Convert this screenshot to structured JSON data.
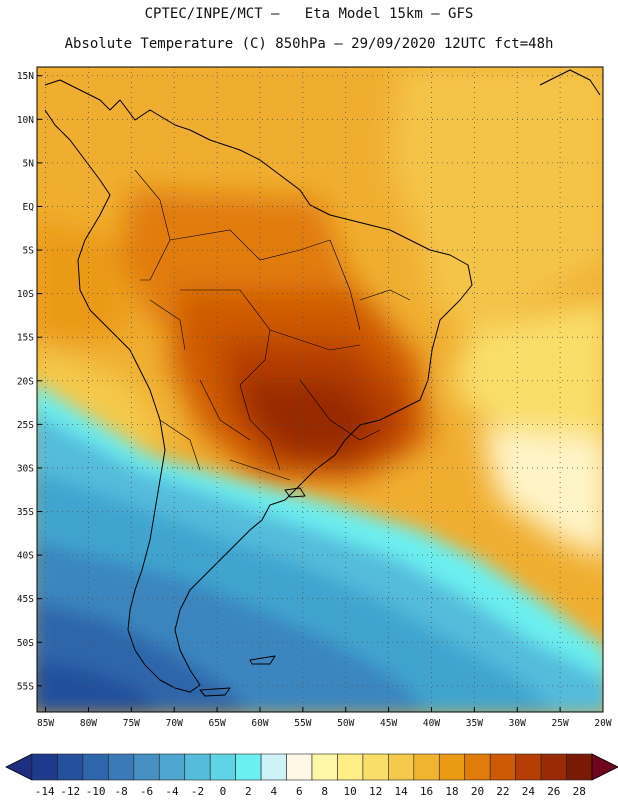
{
  "header": {
    "line1": "CPTEC/INPE/MCT –   Eta Model 15km – GFS",
    "line2": "Absolute Temperature (C) 850hPa – 29/09/2020 12UTC fct=48h"
  },
  "map": {
    "variable": "Absolute Temperature (C) 850hPa",
    "lat_labels": [
      "15N",
      "10N",
      "5N",
      "EQ",
      "5S",
      "10S",
      "15S",
      "20S",
      "25S",
      "30S",
      "35S",
      "40S",
      "45S",
      "50S",
      "55S"
    ],
    "lat_values": [
      15,
      10,
      5,
      0,
      -5,
      -10,
      -15,
      -20,
      -25,
      -30,
      -35,
      -40,
      -45,
      -50,
      -55
    ],
    "lon_labels": [
      "85W",
      "80W",
      "75W",
      "70W",
      "65W",
      "60W",
      "55W",
      "50W",
      "45W",
      "40W",
      "35W",
      "30W",
      "25W",
      "20W"
    ],
    "lon_values": [
      -85,
      -80,
      -75,
      -70,
      -65,
      -60,
      -55,
      -50,
      -45,
      -40,
      -35,
      -30,
      -25,
      -20
    ],
    "extent": {
      "lon_min": -86,
      "lon_max": -20,
      "lat_min": -58,
      "lat_max": 16
    }
  },
  "colorbar": {
    "labels": [
      "-14",
      "-12",
      "-10",
      "-8",
      "-6",
      "-4",
      "-2",
      "0",
      "2",
      "4",
      "6",
      "8",
      "10",
      "12",
      "14",
      "16",
      "18",
      "20",
      "22",
      "24",
      "26",
      "28"
    ],
    "colors": [
      "#1e3a8c",
      "#24509c",
      "#2e66ab",
      "#3a7ab8",
      "#4690c4",
      "#4ea6d0",
      "#55bcdc",
      "#5fd4e6",
      "#6ceff0",
      "#cdf3f8",
      "#fff8e6",
      "#fff7a8",
      "#ffed86",
      "#f9de6a",
      "#f4c94c",
      "#f0b42e",
      "#eb9a14",
      "#e17b0a",
      "#cf5a06",
      "#b63e04",
      "#982a05",
      "#7a1a06"
    ],
    "under_color": "#1e2e80",
    "over_color": "#70061e"
  }
}
